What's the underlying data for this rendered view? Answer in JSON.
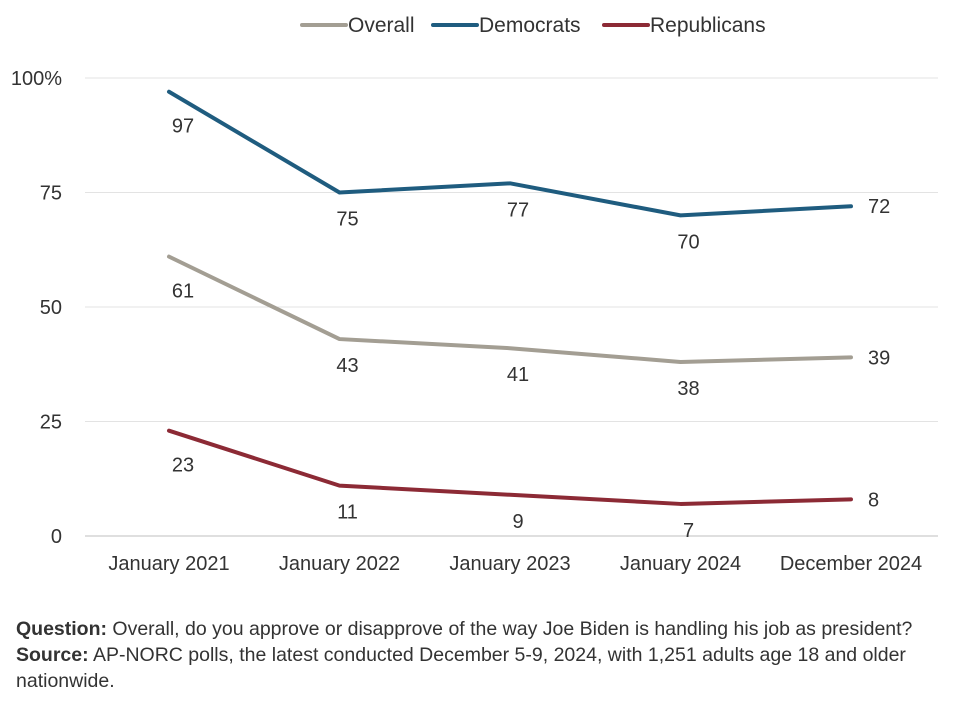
{
  "chart_data": {
    "type": "line",
    "categories": [
      "January 2021",
      "January 2022",
      "January 2023",
      "January 2024",
      "December 2024"
    ],
    "series": [
      {
        "name": "Overall",
        "color": "#a39e93",
        "values": [
          61,
          43,
          41,
          38,
          39
        ]
      },
      {
        "name": "Democrats",
        "color": "#1f5c7f",
        "values": [
          97,
          75,
          77,
          70,
          72
        ]
      },
      {
        "name": "Republicans",
        "color": "#8c2a35",
        "values": [
          23,
          11,
          9,
          7,
          8
        ]
      }
    ],
    "ylim": [
      0,
      100
    ],
    "yticks": [
      0,
      25,
      50,
      75,
      100
    ],
    "ytick_labels": [
      "0",
      "25",
      "50",
      "75",
      "100%"
    ],
    "grid": true,
    "legend_position": "top"
  },
  "notes": {
    "question_label": "Question:",
    "question_text": " Overall, do you approve or disapprove of the way Joe Biden is handling his job as president?",
    "source_label": "Source:",
    "source_text": " AP-NORC polls, the latest conducted December 5-9, 2024, with 1,251 adults age 18 and older nationwide."
  }
}
